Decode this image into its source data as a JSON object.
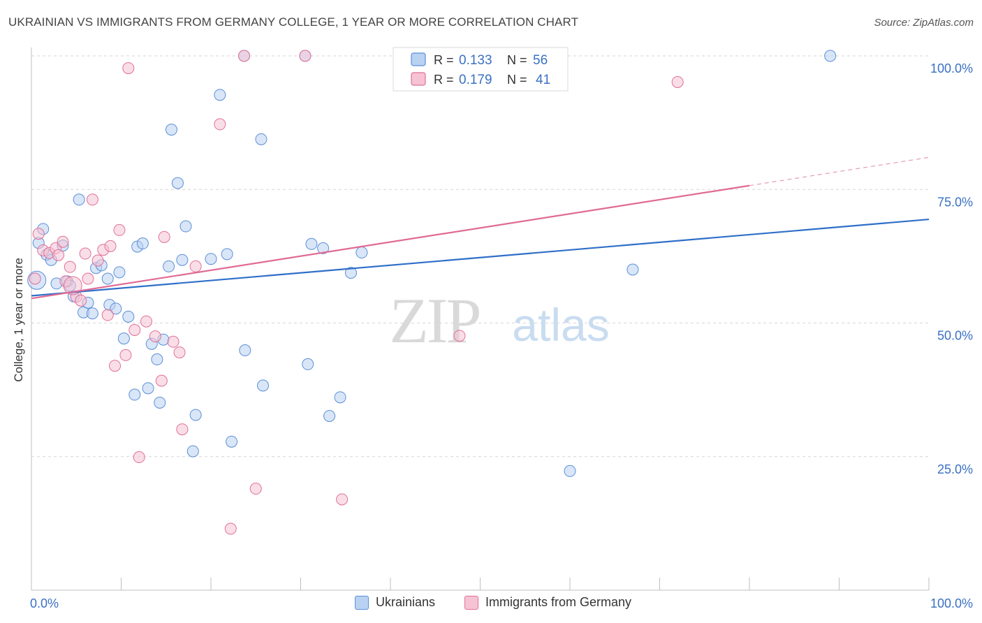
{
  "chart_data": {
    "type": "scatter",
    "title": "UKRAINIAN VS IMMIGRANTS FROM GERMANY COLLEGE, 1 YEAR OR MORE CORRELATION CHART",
    "source": "Source: ZipAtlas.com",
    "xlabel": "",
    "ylabel": "College, 1 year or more",
    "xlim": [
      0,
      1
    ],
    "ylim": [
      0,
      1
    ],
    "x_tick_labels": [
      "0.0%",
      "100.0%"
    ],
    "y_tick_values": [
      0.25,
      0.5,
      0.75,
      1.0
    ],
    "y_tick_labels": [
      "25.0%",
      "50.0%",
      "75.0%",
      "100.0%"
    ],
    "watermark": {
      "part1": "ZIP",
      "part2": "atlas"
    },
    "legend": {
      "rows": [
        {
          "r_label": "R =",
          "r_value": "0.133",
          "n_label": "N =",
          "n_value": "56"
        },
        {
          "r_label": "R =",
          "r_value": "0.179",
          "n_label": "N =",
          "n_value": "41"
        }
      ]
    },
    "series": [
      {
        "name": "Ukrainians",
        "color": "#5b8fd6",
        "fill": "#b9d2f2",
        "trend": {
          "x0": 0.0,
          "y0": 0.551,
          "x1": 1.0,
          "y1": 0.694,
          "solid_until": 1.0
        },
        "points": [
          {
            "x": 0.008,
            "y": 0.65
          },
          {
            "x": 0.013,
            "y": 0.676
          },
          {
            "x": 0.017,
            "y": 0.628
          },
          {
            "x": 0.022,
            "y": 0.618
          },
          {
            "x": 0.028,
            "y": 0.574
          },
          {
            "x": 0.035,
            "y": 0.645
          },
          {
            "x": 0.04,
            "y": 0.578
          },
          {
            "x": 0.043,
            "y": 0.57
          },
          {
            "x": 0.047,
            "y": 0.55
          },
          {
            "x": 0.053,
            "y": 0.731
          },
          {
            "x": 0.058,
            "y": 0.52
          },
          {
            "x": 0.063,
            "y": 0.538
          },
          {
            "x": 0.068,
            "y": 0.518
          },
          {
            "x": 0.072,
            "y": 0.603
          },
          {
            "x": 0.078,
            "y": 0.608
          },
          {
            "x": 0.085,
            "y": 0.583
          },
          {
            "x": 0.087,
            "y": 0.534
          },
          {
            "x": 0.094,
            "y": 0.527
          },
          {
            "x": 0.098,
            "y": 0.595
          },
          {
            "x": 0.103,
            "y": 0.471
          },
          {
            "x": 0.108,
            "y": 0.512
          },
          {
            "x": 0.115,
            "y": 0.366
          },
          {
            "x": 0.118,
            "y": 0.643
          },
          {
            "x": 0.124,
            "y": 0.649
          },
          {
            "x": 0.13,
            "y": 0.378
          },
          {
            "x": 0.134,
            "y": 0.461
          },
          {
            "x": 0.14,
            "y": 0.432
          },
          {
            "x": 0.143,
            "y": 0.351
          },
          {
            "x": 0.147,
            "y": 0.469
          },
          {
            "x": 0.153,
            "y": 0.606
          },
          {
            "x": 0.156,
            "y": 0.862
          },
          {
            "x": 0.163,
            "y": 0.762
          },
          {
            "x": 0.168,
            "y": 0.618
          },
          {
            "x": 0.172,
            "y": 0.681
          },
          {
            "x": 0.18,
            "y": 0.26
          },
          {
            "x": 0.183,
            "y": 0.328
          },
          {
            "x": 0.2,
            "y": 0.62
          },
          {
            "x": 0.21,
            "y": 0.927
          },
          {
            "x": 0.218,
            "y": 0.629
          },
          {
            "x": 0.223,
            "y": 0.278
          },
          {
            "x": 0.237,
            "y": 1.0
          },
          {
            "x": 0.238,
            "y": 0.449
          },
          {
            "x": 0.256,
            "y": 0.844
          },
          {
            "x": 0.258,
            "y": 0.383
          },
          {
            "x": 0.305,
            "y": 1.0
          },
          {
            "x": 0.308,
            "y": 0.423
          },
          {
            "x": 0.312,
            "y": 0.648
          },
          {
            "x": 0.325,
            "y": 0.64
          },
          {
            "x": 0.332,
            "y": 0.326
          },
          {
            "x": 0.344,
            "y": 0.361
          },
          {
            "x": 0.356,
            "y": 0.594
          },
          {
            "x": 0.368,
            "y": 0.632
          },
          {
            "x": 0.6,
            "y": 0.223
          },
          {
            "x": 0.67,
            "y": 0.6
          },
          {
            "x": 0.89,
            "y": 1.0
          },
          {
            "x": 0.006,
            "y": 0.58
          }
        ]
      },
      {
        "name": "Immigrants from Germany",
        "color": "#e07096",
        "fill": "#f6c3d4",
        "trend": {
          "x0": 0.0,
          "y0": 0.546,
          "x1": 1.0,
          "y1": 0.81,
          "solid_until": 0.8
        },
        "points": [
          {
            "x": 0.004,
            "y": 0.583
          },
          {
            "x": 0.008,
            "y": 0.667
          },
          {
            "x": 0.013,
            "y": 0.636
          },
          {
            "x": 0.02,
            "y": 0.631
          },
          {
            "x": 0.027,
            "y": 0.64
          },
          {
            "x": 0.03,
            "y": 0.627
          },
          {
            "x": 0.035,
            "y": 0.652
          },
          {
            "x": 0.038,
            "y": 0.578
          },
          {
            "x": 0.043,
            "y": 0.605
          },
          {
            "x": 0.05,
            "y": 0.549
          },
          {
            "x": 0.055,
            "y": 0.542
          },
          {
            "x": 0.06,
            "y": 0.63
          },
          {
            "x": 0.063,
            "y": 0.583
          },
          {
            "x": 0.068,
            "y": 0.731
          },
          {
            "x": 0.074,
            "y": 0.617
          },
          {
            "x": 0.08,
            "y": 0.637
          },
          {
            "x": 0.085,
            "y": 0.515
          },
          {
            "x": 0.088,
            "y": 0.644
          },
          {
            "x": 0.093,
            "y": 0.42
          },
          {
            "x": 0.098,
            "y": 0.674
          },
          {
            "x": 0.105,
            "y": 0.44
          },
          {
            "x": 0.108,
            "y": 0.977
          },
          {
            "x": 0.115,
            "y": 0.487
          },
          {
            "x": 0.12,
            "y": 0.249
          },
          {
            "x": 0.128,
            "y": 0.503
          },
          {
            "x": 0.138,
            "y": 0.475
          },
          {
            "x": 0.145,
            "y": 0.392
          },
          {
            "x": 0.148,
            "y": 0.661
          },
          {
            "x": 0.158,
            "y": 0.465
          },
          {
            "x": 0.165,
            "y": 0.445
          },
          {
            "x": 0.168,
            "y": 0.301
          },
          {
            "x": 0.183,
            "y": 0.606
          },
          {
            "x": 0.21,
            "y": 0.872
          },
          {
            "x": 0.222,
            "y": 0.115
          },
          {
            "x": 0.237,
            "y": 1.0
          },
          {
            "x": 0.25,
            "y": 0.19
          },
          {
            "x": 0.305,
            "y": 1.0
          },
          {
            "x": 0.346,
            "y": 0.17
          },
          {
            "x": 0.477,
            "y": 0.476
          },
          {
            "x": 0.72,
            "y": 0.951
          },
          {
            "x": 0.046,
            "y": 0.57
          }
        ]
      }
    ]
  },
  "legend_bottom": [
    {
      "label": "Ukrainians"
    },
    {
      "label": "Immigrants from Germany"
    }
  ]
}
